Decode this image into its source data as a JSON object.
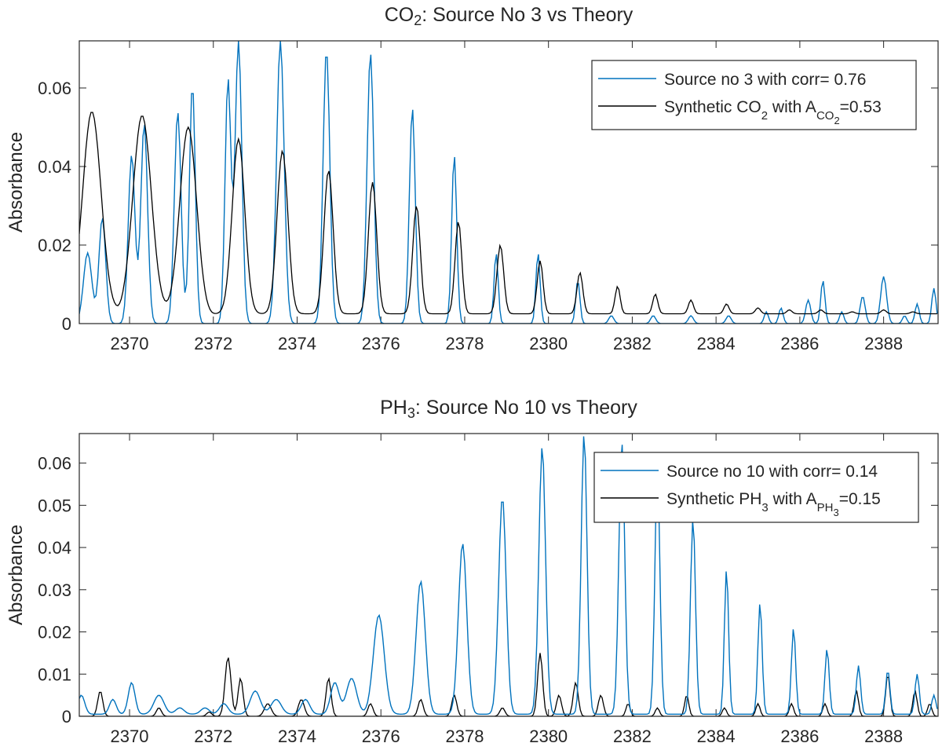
{
  "chart_data": [
    {
      "type": "line",
      "title": "CO2: Source No 3 vs Theory",
      "title_main": "CO",
      "title_sub": "2",
      "title_rest": ": Source No 3 vs Theory",
      "ylabel": "Absorbance",
      "xlabel": "",
      "xlim": [
        2368.8,
        2389.3
      ],
      "ylim": [
        0,
        0.072
      ],
      "xticks": [
        2370,
        2372,
        2374,
        2376,
        2378,
        2380,
        2382,
        2384,
        2386,
        2388
      ],
      "yticks": [
        0,
        0.02,
        0.04,
        0.06
      ],
      "ytick_labels": [
        "0",
        "0.02",
        "0.04",
        "0.06"
      ],
      "legend_position": "top-right",
      "legend": [
        {
          "text": "Source no 3 with corr= 0.76",
          "color": "#0072BD"
        },
        {
          "text": "Synthetic CO2 with ACO2=0.53",
          "color": "#000000",
          "parts": [
            {
              "t": "Synthetic CO",
              "s": "n"
            },
            {
              "t": "2",
              "s": "sub"
            },
            {
              "t": " with A",
              "s": "n"
            },
            {
              "t": "CO",
              "s": "sub"
            },
            {
              "t": "2",
              "s": "subsub"
            },
            {
              "t": "=0.53",
              "s": "n"
            }
          ]
        }
      ],
      "series": [
        {
          "name": "Source no 3 with corr= 0.76",
          "color": "#0072BD",
          "baseline": 0.0,
          "peaks": [
            [
              2369.0,
              0.018,
              0.1
            ],
            [
              2369.35,
              0.027,
              0.08
            ],
            [
              2370.05,
              0.043,
              0.08
            ],
            [
              2370.35,
              0.051,
              0.08
            ],
            [
              2371.15,
              0.054,
              0.08
            ],
            [
              2371.5,
              0.061,
              0.07
            ],
            [
              2372.35,
              0.062,
              0.07
            ],
            [
              2372.6,
              0.072,
              0.08
            ],
            [
              2373.6,
              0.072,
              0.09
            ],
            [
              2374.7,
              0.07,
              0.08
            ],
            [
              2375.75,
              0.069,
              0.08
            ],
            [
              2376.75,
              0.055,
              0.07
            ],
            [
              2377.75,
              0.043,
              0.06
            ],
            [
              2378.75,
              0.018,
              0.05
            ],
            [
              2379.75,
              0.018,
              0.05
            ],
            [
              2380.7,
              0.011,
              0.05
            ],
            [
              2381.5,
              0.002,
              0.06
            ],
            [
              2382.5,
              0.002,
              0.06
            ],
            [
              2383.4,
              0.002,
              0.06
            ],
            [
              2384.3,
              0.002,
              0.06
            ],
            [
              2385.2,
              0.003,
              0.05
            ],
            [
              2385.55,
              0.004,
              0.05
            ],
            [
              2386.2,
              0.006,
              0.06
            ],
            [
              2386.55,
              0.011,
              0.05
            ],
            [
              2387.0,
              0.003,
              0.05
            ],
            [
              2387.5,
              0.007,
              0.06
            ],
            [
              2388.0,
              0.012,
              0.07
            ],
            [
              2388.5,
              0.002,
              0.05
            ],
            [
              2388.8,
              0.005,
              0.05
            ],
            [
              2389.2,
              0.009,
              0.05
            ]
          ]
        },
        {
          "name": "Synthetic CO2 with ACO2=0.53",
          "color": "#000000",
          "baseline": 0.0025,
          "peaks": [
            [
              2369.1,
              0.054,
              0.22
            ],
            [
              2369.75,
              0.002,
              0.08
            ],
            [
              2370.3,
              0.053,
              0.22
            ],
            [
              2371.4,
              0.05,
              0.2
            ],
            [
              2371.9,
              0.002,
              0.12
            ],
            [
              2372.6,
              0.047,
              0.15
            ],
            [
              2373.65,
              0.044,
              0.13
            ],
            [
              2374.75,
              0.039,
              0.11
            ],
            [
              2375.8,
              0.036,
              0.1
            ],
            [
              2376.85,
              0.03,
              0.09
            ],
            [
              2377.85,
              0.026,
              0.08
            ],
            [
              2378.85,
              0.02,
              0.08
            ],
            [
              2379.8,
              0.016,
              0.07
            ],
            [
              2380.75,
              0.013,
              0.07
            ],
            [
              2381.65,
              0.0095,
              0.06
            ],
            [
              2382.55,
              0.0075,
              0.06
            ],
            [
              2383.4,
              0.006,
              0.06
            ],
            [
              2384.25,
              0.005,
              0.06
            ],
            [
              2385.0,
              0.004,
              0.06
            ],
            [
              2385.75,
              0.0035,
              0.06
            ],
            [
              2386.5,
              0.0035,
              0.06
            ],
            [
              2387.25,
              0.003,
              0.06
            ],
            [
              2388.0,
              0.0035,
              0.06
            ],
            [
              2388.7,
              0.003,
              0.06
            ]
          ]
        }
      ]
    },
    {
      "type": "line",
      "title": "PH3: Source No 10 vs Theory",
      "title_main": "PH",
      "title_sub": "3",
      "title_rest": ": Source No 10 vs Theory",
      "ylabel": "Absorbance",
      "xlabel": "",
      "xlim": [
        2368.8,
        2389.3
      ],
      "ylim": [
        0,
        0.067
      ],
      "xticks": [
        2370,
        2372,
        2374,
        2376,
        2378,
        2380,
        2382,
        2384,
        2386,
        2388
      ],
      "yticks": [
        0,
        0.01,
        0.02,
        0.03,
        0.04,
        0.05,
        0.06
      ],
      "ytick_labels": [
        "0",
        "0.01",
        "0.02",
        "0.03",
        "0.04",
        "0.05",
        "0.06"
      ],
      "legend_position": "top-right",
      "legend": [
        {
          "text": "Source no 10 with corr= 0.14",
          "color": "#0072BD"
        },
        {
          "text": "Synthetic PH3 with APH3=0.15",
          "color": "#000000",
          "parts": [
            {
              "t": "Synthetic PH",
              "s": "n"
            },
            {
              "t": "3",
              "s": "sub"
            },
            {
              "t": " with A",
              "s": "n"
            },
            {
              "t": "PH",
              "s": "sub"
            },
            {
              "t": "3",
              "s": "subsub"
            },
            {
              "t": "=0.15",
              "s": "n"
            }
          ]
        }
      ],
      "series": [
        {
          "name": "Source no 10 with corr= 0.14",
          "color": "#0072BD",
          "baseline": 0.0005,
          "peaks": [
            [
              2368.85,
              0.005,
              0.08
            ],
            [
              2369.6,
              0.004,
              0.08
            ],
            [
              2370.05,
              0.008,
              0.08
            ],
            [
              2370.7,
              0.005,
              0.12
            ],
            [
              2371.2,
              0.002,
              0.1
            ],
            [
              2371.8,
              0.002,
              0.1
            ],
            [
              2372.25,
              0.003,
              0.1
            ],
            [
              2373.0,
              0.006,
              0.12
            ],
            [
              2373.5,
              0.004,
              0.12
            ],
            [
              2374.2,
              0.004,
              0.1
            ],
            [
              2374.9,
              0.008,
              0.1
            ],
            [
              2375.3,
              0.009,
              0.12
            ],
            [
              2375.95,
              0.024,
              0.13
            ],
            [
              2376.95,
              0.032,
              0.11
            ],
            [
              2377.95,
              0.041,
              0.1
            ],
            [
              2378.9,
              0.052,
              0.09
            ],
            [
              2379.85,
              0.064,
              0.08
            ],
            [
              2380.85,
              0.067,
              0.07
            ],
            [
              2381.75,
              0.065,
              0.07
            ],
            [
              2382.6,
              0.058,
              0.06
            ],
            [
              2383.45,
              0.047,
              0.06
            ],
            [
              2384.25,
              0.035,
              0.05
            ],
            [
              2385.05,
              0.027,
              0.05
            ],
            [
              2385.85,
              0.021,
              0.05
            ],
            [
              2386.65,
              0.016,
              0.05
            ],
            [
              2387.4,
              0.012,
              0.05
            ],
            [
              2388.1,
              0.011,
              0.05
            ],
            [
              2388.8,
              0.01,
              0.05
            ],
            [
              2389.2,
              0.005,
              0.05
            ]
          ]
        },
        {
          "name": "Synthetic PH3 with APH3=0.15",
          "color": "#000000",
          "baseline": 0.0,
          "peaks": [
            [
              2369.3,
              0.006,
              0.06
            ],
            [
              2370.7,
              0.002,
              0.06
            ],
            [
              2371.9,
              0.001,
              0.06
            ],
            [
              2372.35,
              0.014,
              0.07
            ],
            [
              2372.65,
              0.009,
              0.06
            ],
            [
              2373.3,
              0.003,
              0.08
            ],
            [
              2374.1,
              0.004,
              0.07
            ],
            [
              2374.75,
              0.009,
              0.06
            ],
            [
              2375.75,
              0.003,
              0.06
            ],
            [
              2376.95,
              0.004,
              0.06
            ],
            [
              2377.75,
              0.005,
              0.06
            ],
            [
              2378.9,
              0.002,
              0.06
            ],
            [
              2379.8,
              0.015,
              0.06
            ],
            [
              2380.25,
              0.005,
              0.06
            ],
            [
              2380.65,
              0.008,
              0.06
            ],
            [
              2381.25,
              0.005,
              0.06
            ],
            [
              2381.9,
              0.003,
              0.05
            ],
            [
              2382.6,
              0.002,
              0.05
            ],
            [
              2383.3,
              0.005,
              0.05
            ],
            [
              2384.2,
              0.002,
              0.05
            ],
            [
              2385.0,
              0.003,
              0.05
            ],
            [
              2385.8,
              0.003,
              0.05
            ],
            [
              2386.6,
              0.003,
              0.05
            ],
            [
              2387.35,
              0.006,
              0.05
            ],
            [
              2388.1,
              0.01,
              0.05
            ],
            [
              2388.75,
              0.006,
              0.05
            ],
            [
              2389.1,
              0.003,
              0.05
            ]
          ]
        }
      ]
    }
  ]
}
